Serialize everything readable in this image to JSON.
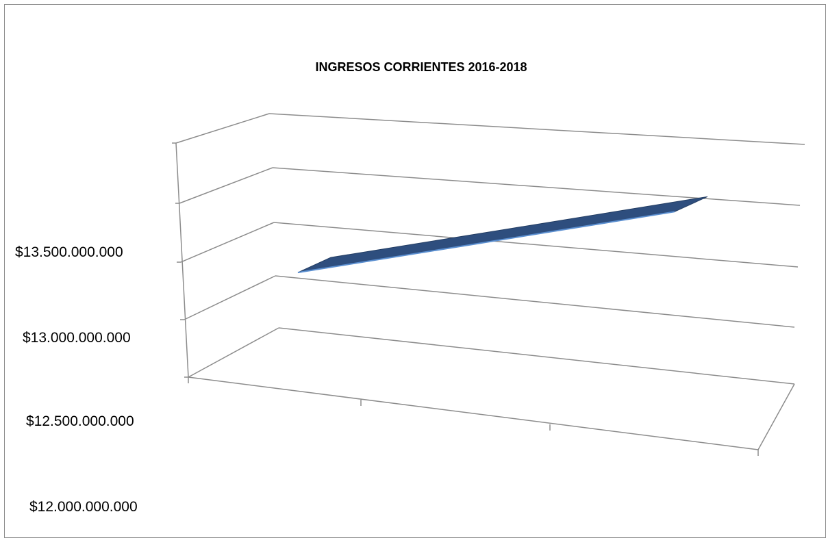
{
  "chart_data": {
    "type": "line",
    "title": "INGRESOS CORRIENTES 2016-2018",
    "xlabel": "",
    "ylabel": "",
    "categories": [
      "",
      "",
      ""
    ],
    "series": [
      {
        "values": [
          13410000000,
          13690000000,
          14010000000
        ]
      }
    ],
    "ylim": [
      12000000000,
      14000000000
    ],
    "y_ticks": [
      "$12.000.000.000",
      "$12.500.000.000",
      "$13.000.000.000",
      "$13.500.000.000"
    ],
    "grid": true,
    "legend": "none",
    "colors": {
      "series": "#2e4e7e",
      "series_edge": "#5b8fd0",
      "axis": "#8c8c8c"
    }
  }
}
